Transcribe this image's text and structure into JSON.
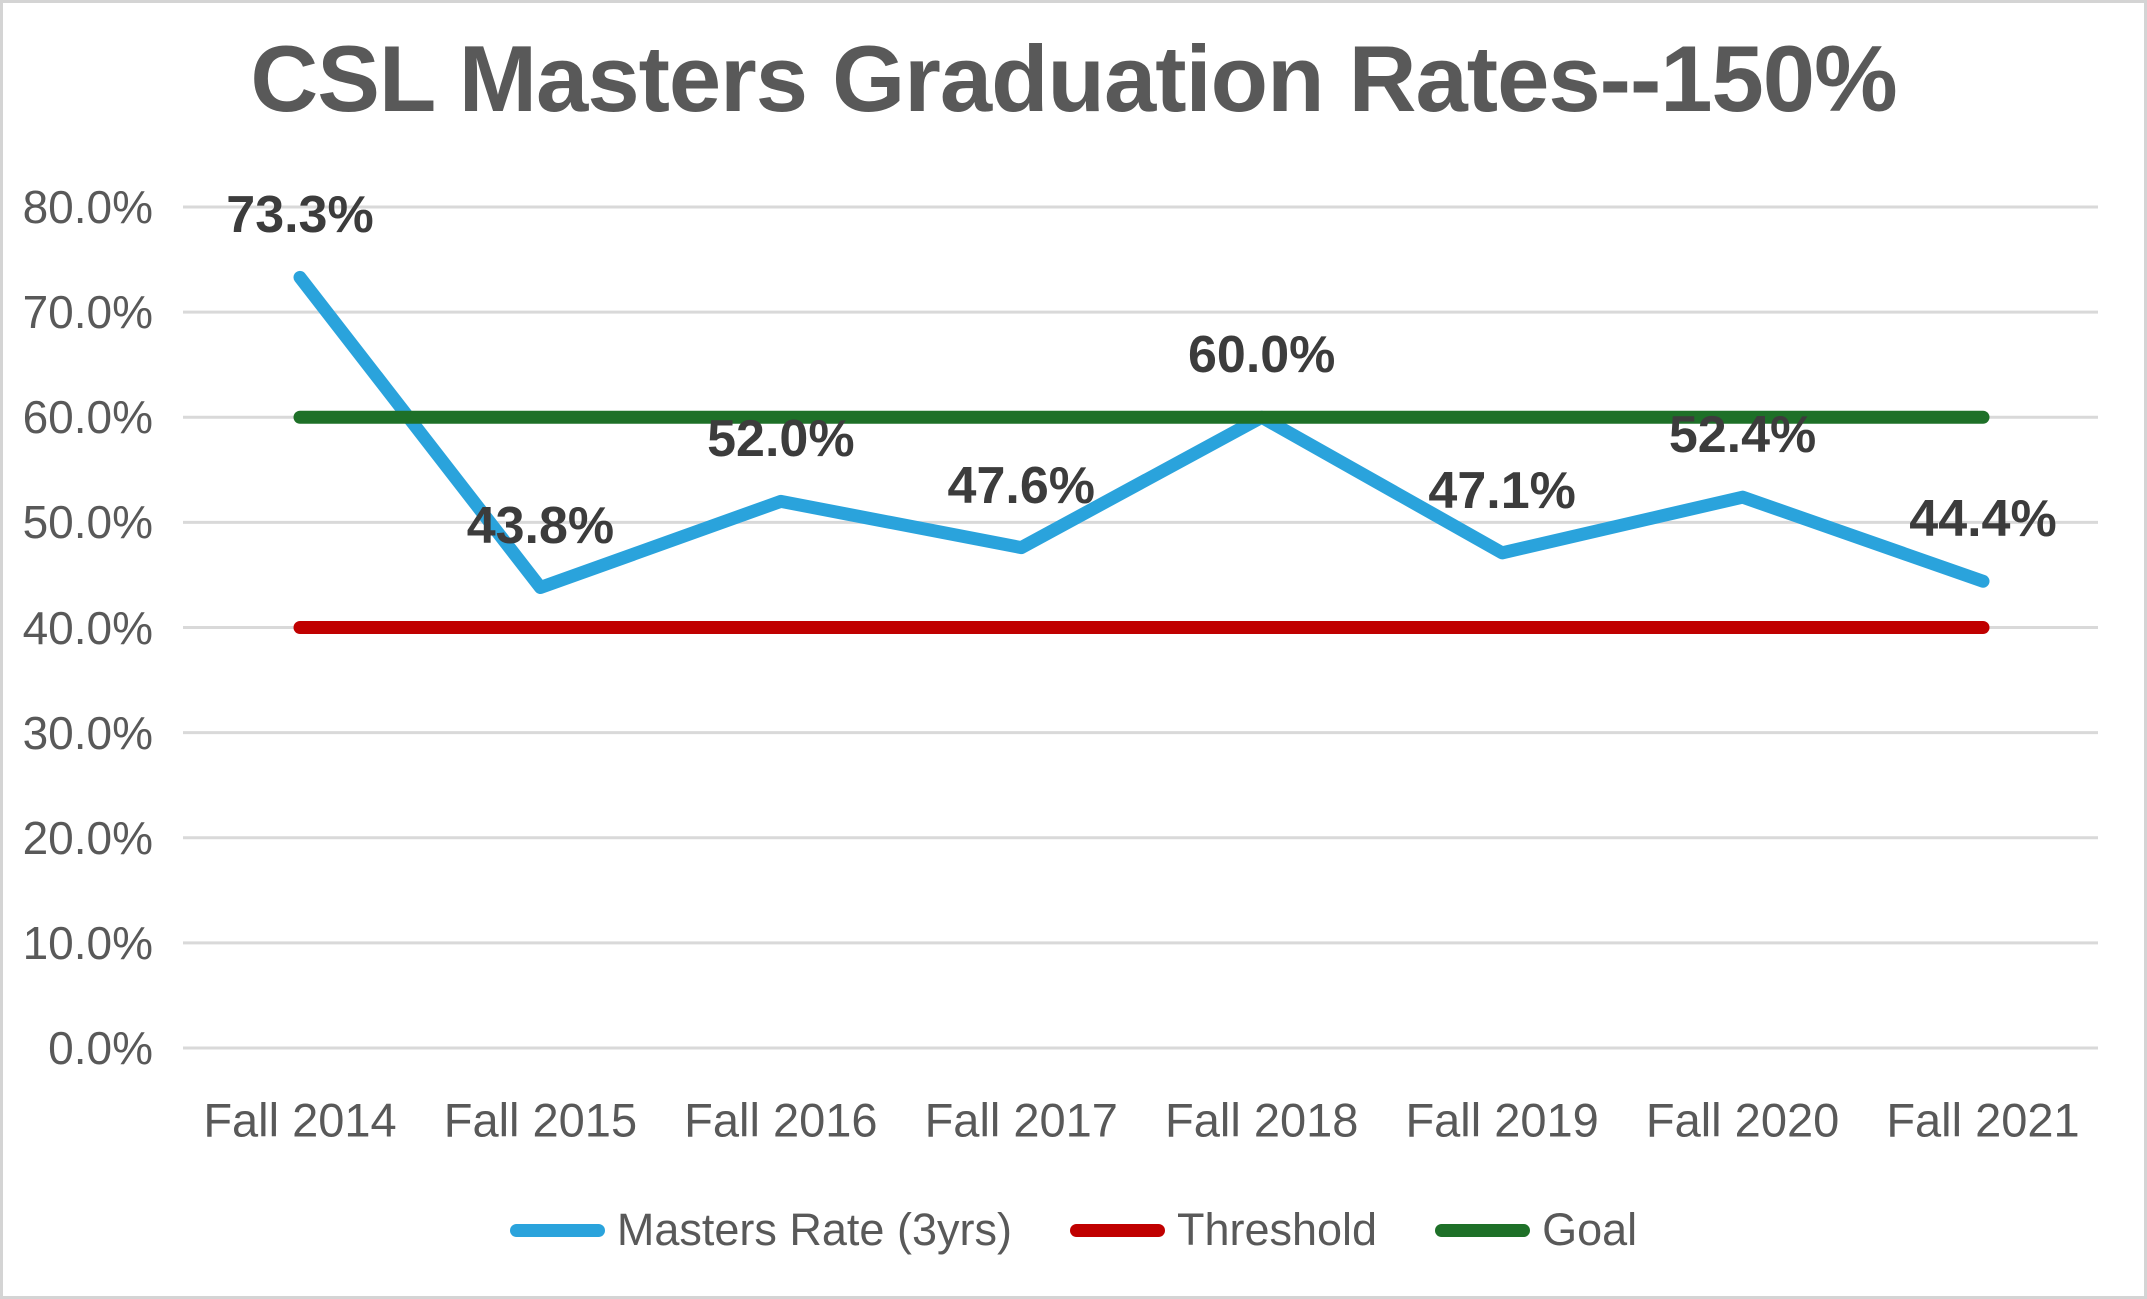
{
  "chart_data": {
    "type": "line",
    "title": "CSL Masters Graduation Rates--150%",
    "categories": [
      "Fall 2014",
      "Fall 2015",
      "Fall 2016",
      "Fall 2017",
      "Fall 2018",
      "Fall 2019",
      "Fall 2020",
      "Fall 2021"
    ],
    "series": [
      {
        "name": "Masters Rate (3yrs)",
        "color": "#2aa3dc",
        "values": [
          73.3,
          43.8,
          52.0,
          47.6,
          60.0,
          47.1,
          52.4,
          44.4
        ],
        "data_labels": [
          "73.3%",
          "43.8%",
          "52.0%",
          "47.6%",
          "60.0%",
          "47.1%",
          "52.4%",
          "44.4%"
        ]
      },
      {
        "name": "Threshold",
        "color": "#c00000",
        "values": [
          40,
          40,
          40,
          40,
          40,
          40,
          40,
          40
        ],
        "data_labels": []
      },
      {
        "name": "Goal",
        "color": "#1e7028",
        "values": [
          60,
          60,
          60,
          60,
          60,
          60,
          60,
          60
        ],
        "data_labels": []
      }
    ],
    "y_axis": {
      "min": 0,
      "max": 80,
      "step": 10,
      "tick_labels": [
        "0.0%",
        "10.0%",
        "20.0%",
        "30.0%",
        "40.0%",
        "50.0%",
        "60.0%",
        "70.0%",
        "80.0%"
      ]
    },
    "x_axis": {
      "label": ""
    },
    "grid": true,
    "gridline_color": "#d9d9d9",
    "legend_position": "bottom"
  }
}
